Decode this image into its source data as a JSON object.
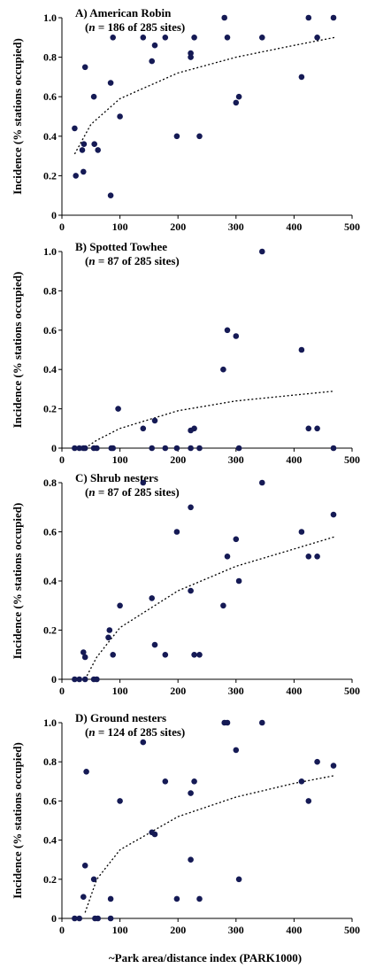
{
  "figure": {
    "xlabel": "~Park area/distance index (PARK1000)"
  },
  "chart_data": [
    {
      "type": "scatter",
      "title": "A) American Robin",
      "subtitle_n": "n",
      "subtitle_rest": " = 186 of 285 sites)",
      "ylabel": "Incidence (% stations occupied)",
      "xlim": [
        0,
        500
      ],
      "ylim": [
        0,
        1.0
      ],
      "xticks": [
        "0",
        "100",
        "200",
        "300",
        "400",
        "500"
      ],
      "yticks": [
        "0",
        "0.2",
        "0.4",
        "0.6",
        "0.8",
        "1.0"
      ],
      "grid": false,
      "trend": "log fit (dotted)",
      "points": [
        [
          22,
          0.44
        ],
        [
          24,
          0.2
        ],
        [
          35,
          0.33
        ],
        [
          37,
          0.22
        ],
        [
          38,
          0.36
        ],
        [
          40,
          0.75
        ],
        [
          55,
          0.6
        ],
        [
          56,
          0.36
        ],
        [
          62,
          0.33
        ],
        [
          84,
          0.67
        ],
        [
          84,
          0.1
        ],
        [
          88,
          0.9
        ],
        [
          100,
          0.5
        ],
        [
          140,
          0.9
        ],
        [
          155,
          0.78
        ],
        [
          160,
          0.86
        ],
        [
          178,
          0.9
        ],
        [
          198,
          0.4
        ],
        [
          222,
          0.82
        ],
        [
          222,
          0.8
        ],
        [
          228,
          0.9
        ],
        [
          237,
          0.4
        ],
        [
          280,
          1.0
        ],
        [
          285,
          0.9
        ],
        [
          300,
          0.57
        ],
        [
          305,
          0.6
        ],
        [
          345,
          0.9
        ],
        [
          413,
          0.7
        ],
        [
          425,
          1.0
        ],
        [
          440,
          0.9
        ],
        [
          468,
          1.0
        ]
      ],
      "trend_points": [
        [
          22,
          0.31
        ],
        [
          50,
          0.46
        ],
        [
          100,
          0.59
        ],
        [
          200,
          0.72
        ],
        [
          300,
          0.8
        ],
        [
          400,
          0.86
        ],
        [
          470,
          0.9
        ]
      ]
    },
    {
      "type": "scatter",
      "title": "B) Spotted Towhee",
      "subtitle_n": "n",
      "subtitle_rest": " = 87 of 285 sites)",
      "ylabel": "Incidence (% stations occupied)",
      "xlim": [
        0,
        500
      ],
      "ylim": [
        0,
        1.0
      ],
      "xticks": [
        "0",
        "100",
        "200",
        "300",
        "400",
        "500"
      ],
      "yticks": [
        "0",
        "0.2",
        "0.4",
        "0.6",
        "0.8",
        "1.0"
      ],
      "grid": false,
      "trend": "log fit (dotted)",
      "points": [
        [
          22,
          0
        ],
        [
          30,
          0
        ],
        [
          37,
          0
        ],
        [
          40,
          0
        ],
        [
          55,
          0
        ],
        [
          60,
          0
        ],
        [
          85,
          0
        ],
        [
          88,
          0
        ],
        [
          97,
          0.2
        ],
        [
          140,
          0.1
        ],
        [
          155,
          0
        ],
        [
          160,
          0.14
        ],
        [
          178,
          0
        ],
        [
          198,
          0
        ],
        [
          222,
          0
        ],
        [
          222,
          0.09
        ],
        [
          228,
          0.1
        ],
        [
          237,
          0
        ],
        [
          278,
          0.4
        ],
        [
          285,
          0.6
        ],
        [
          300,
          0.57
        ],
        [
          305,
          0
        ],
        [
          345,
          1.0
        ],
        [
          413,
          0.5
        ],
        [
          425,
          0.1
        ],
        [
          440,
          0.1
        ],
        [
          468,
          0
        ]
      ],
      "trend_points": [
        [
          40,
          0
        ],
        [
          60,
          0.04
        ],
        [
          100,
          0.1
        ],
        [
          200,
          0.19
        ],
        [
          300,
          0.24
        ],
        [
          400,
          0.27
        ],
        [
          470,
          0.29
        ]
      ]
    },
    {
      "type": "scatter",
      "title": "C) Shrub nesters",
      "subtitle_n": "n",
      "subtitle_rest": " = 87 of 285 sites)",
      "ylabel": "Incidence (% stations occupied)",
      "xlim": [
        0,
        500
      ],
      "ylim": [
        0,
        0.8
      ],
      "xticks": [
        "0",
        "100",
        "200",
        "300",
        "400",
        "500"
      ],
      "yticks": [
        "0",
        "0.2",
        "0.4",
        "0.6",
        "0.8"
      ],
      "grid": false,
      "trend": "log fit (dotted)",
      "points": [
        [
          22,
          0
        ],
        [
          30,
          0
        ],
        [
          37,
          0.11
        ],
        [
          40,
          0.09
        ],
        [
          40,
          0
        ],
        [
          55,
          0
        ],
        [
          60,
          0
        ],
        [
          80,
          0.17
        ],
        [
          82,
          0.2
        ],
        [
          88,
          0.1
        ],
        [
          100,
          0.3
        ],
        [
          140,
          0.8
        ],
        [
          155,
          0.33
        ],
        [
          160,
          0.14
        ],
        [
          178,
          0.1
        ],
        [
          198,
          0.6
        ],
        [
          222,
          0.7
        ],
        [
          222,
          0.36
        ],
        [
          228,
          0.1
        ],
        [
          237,
          0.1
        ],
        [
          278,
          0.3
        ],
        [
          285,
          0.5
        ],
        [
          300,
          0.57
        ],
        [
          305,
          0.4
        ],
        [
          345,
          0.8
        ],
        [
          413,
          0.6
        ],
        [
          425,
          0.5
        ],
        [
          440,
          0.5
        ],
        [
          468,
          0.67
        ]
      ],
      "trend_points": [
        [
          40,
          0
        ],
        [
          60,
          0.09
        ],
        [
          100,
          0.21
        ],
        [
          200,
          0.36
        ],
        [
          300,
          0.46
        ],
        [
          400,
          0.53
        ],
        [
          470,
          0.58
        ]
      ]
    },
    {
      "type": "scatter",
      "title": "D) Ground nesters",
      "subtitle_n": "n",
      "subtitle_rest": " = 124 of 285 sites)",
      "ylabel": "Incidence (% stations occupied)",
      "xlim": [
        0,
        500
      ],
      "ylim": [
        0,
        1.0
      ],
      "xticks": [
        "0",
        "100",
        "200",
        "300",
        "400",
        "500"
      ],
      "yticks": [
        "0",
        "0.2",
        "0.4",
        "0.6",
        "0.8",
        "1.0"
      ],
      "grid": false,
      "trend": "log fit (dotted)",
      "points": [
        [
          22,
          0
        ],
        [
          30,
          0
        ],
        [
          37,
          0.11
        ],
        [
          40,
          0.27
        ],
        [
          42,
          0.75
        ],
        [
          55,
          0.2
        ],
        [
          57,
          0
        ],
        [
          62,
          0
        ],
        [
          84,
          0.1
        ],
        [
          84,
          0
        ],
        [
          100,
          0.6
        ],
        [
          140,
          0.9
        ],
        [
          155,
          0.44
        ],
        [
          160,
          0.43
        ],
        [
          178,
          0.7
        ],
        [
          198,
          0.1
        ],
        [
          222,
          0.64
        ],
        [
          222,
          0.3
        ],
        [
          228,
          0.7
        ],
        [
          237,
          0.1
        ],
        [
          280,
          1.0
        ],
        [
          285,
          1.0
        ],
        [
          300,
          0.86
        ],
        [
          305,
          0.2
        ],
        [
          345,
          1.0
        ],
        [
          413,
          0.7
        ],
        [
          425,
          0.6
        ],
        [
          440,
          0.8
        ],
        [
          468,
          0.78
        ]
      ],
      "trend_points": [
        [
          40,
          0.03
        ],
        [
          60,
          0.2
        ],
        [
          100,
          0.35
        ],
        [
          200,
          0.52
        ],
        [
          300,
          0.62
        ],
        [
          400,
          0.69
        ],
        [
          470,
          0.73
        ]
      ]
    }
  ]
}
